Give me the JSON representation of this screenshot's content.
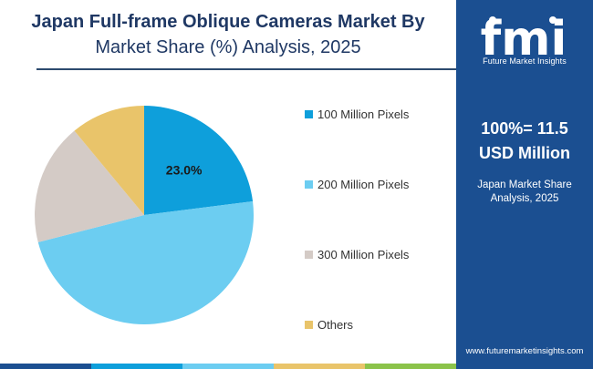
{
  "title": {
    "line1": "Japan Full-frame Oblique Cameras Market By",
    "line2": "Market Share (%) Analysis, 2025"
  },
  "chart_data": {
    "type": "pie",
    "slices": [
      {
        "label": "100 Million Pixels",
        "value": 23.0,
        "color": "#0e9fdb",
        "data_label": "23.0%"
      },
      {
        "label": "200 Million Pixels",
        "value": 48.0,
        "color": "#6ccdf1",
        "data_label": ""
      },
      {
        "label": "300 Million Pixels",
        "value": 18.0,
        "color": "#d4cbc6",
        "data_label": ""
      },
      {
        "label": "Others",
        "value": 11.0,
        "color": "#e9c46a",
        "data_label": ""
      }
    ],
    "legend_placement": "right"
  },
  "panel": {
    "logo_text": "fmi",
    "logo_caption": "Future Market Insights",
    "stat_line1": "100%= 11.5",
    "stat_line2": "USD Million",
    "sub_line1": "Japan Market Share",
    "sub_line2": "Analysis, 2025",
    "website": "www.futuremarketinsights.com",
    "background": "#1b4f91"
  },
  "bottom_bar_colors": [
    "#1b4f91",
    "#0e9fdb",
    "#6ccdf1",
    "#e9c46a",
    "#8bc34a"
  ]
}
